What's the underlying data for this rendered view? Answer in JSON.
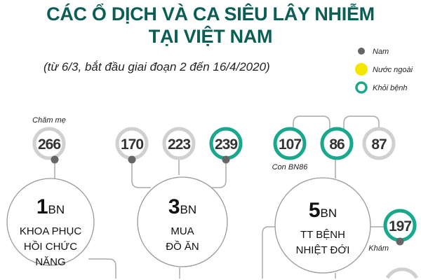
{
  "title_line1": "CÁC Ổ DỊCH VÀ CA SIÊU LÂY NHIỄM",
  "title_line2": "TẠI VIỆT NAM",
  "subtitle": "(từ 6/3, bắt đầu giai đoạn 2 đến 16/4/2020)",
  "colors": {
    "title": "#0b5e55",
    "recovered": "#1aa88c",
    "male": "#666666",
    "foreign": "#f5e600",
    "ring": "#d0d0d0"
  },
  "legend": [
    {
      "label": "Nam",
      "icon": "gray-dot"
    },
    {
      "label": "Nước ngoài",
      "icon": "yellow-dot"
    },
    {
      "label": "Khỏi bệnh",
      "icon": "teal-ring"
    }
  ],
  "patients": [
    {
      "id": "266",
      "recovered": false,
      "male": true,
      "note": "Chăm mẹ"
    },
    {
      "id": "170",
      "recovered": false,
      "male": true
    },
    {
      "id": "223",
      "recovered": false,
      "male": false
    },
    {
      "id": "239",
      "recovered": true,
      "male": true
    },
    {
      "id": "107",
      "recovered": true,
      "male": false,
      "note": "Con BN86"
    },
    {
      "id": "86",
      "recovered": true,
      "male": false
    },
    {
      "id": "87",
      "recovered": false,
      "male": false
    },
    {
      "id": "197",
      "recovered": true,
      "male": true,
      "note": "Khám"
    }
  ],
  "clusters": [
    {
      "count": "1",
      "unit": "BN",
      "lines": [
        "KHOA PHỤC",
        "HỒI CHỨC",
        "NĂNG"
      ]
    },
    {
      "count": "3",
      "unit": "BN",
      "lines": [
        "MUA",
        "ĐỒ ĂN"
      ]
    },
    {
      "count": "5",
      "unit": "BN",
      "lines": [
        "TT BỆNH",
        "NHIỆT ĐỚI"
      ]
    }
  ]
}
